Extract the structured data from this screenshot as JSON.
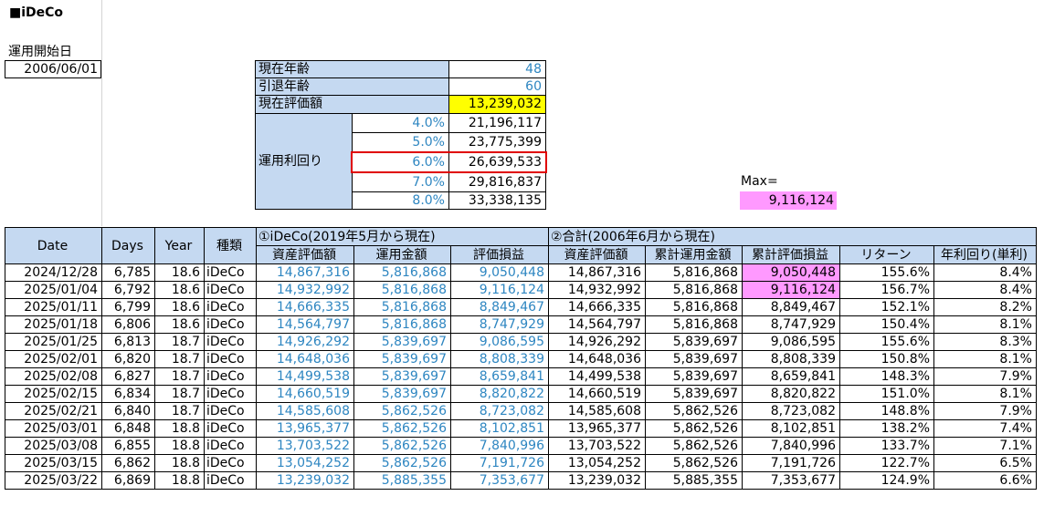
{
  "title": "■iDeCo",
  "start": {
    "label": "運用開始日",
    "value": "2006/06/01"
  },
  "summary": {
    "age_label": "現在年齢",
    "age_value": "48",
    "retire_label": "引退年齢",
    "retire_value": "60",
    "current_label": "現在評価額",
    "current_value": "13,239,032",
    "rate_label": "運用利回り",
    "rates": [
      {
        "rate": "4.0%",
        "amount": "21,196,117"
      },
      {
        "rate": "5.0%",
        "amount": "23,775,399"
      },
      {
        "rate": "6.0%",
        "amount": "26,639,533"
      },
      {
        "rate": "7.0%",
        "amount": "29,816,837"
      },
      {
        "rate": "8.0%",
        "amount": "33,338,135"
      }
    ]
  },
  "max": {
    "label": "Max=",
    "value": "9,116,124"
  },
  "table": {
    "group1": "①iDeCo(2019年5月から現在)",
    "group2": "②合計(2006年6月から現在)",
    "headers": {
      "date": "Date",
      "days": "Days",
      "year": "Year",
      "type": "種類",
      "asset1": "資産評価額",
      "invest1": "運用金額",
      "pl1": "評価損益",
      "asset2": "資産評価額",
      "invest2": "累計運用金額",
      "pl2": "累計評価損益",
      "ret": "リターン",
      "annual": "年利回り(単利)"
    },
    "rows": [
      {
        "date": "2024/12/28",
        "days": "6,785",
        "year": "18.6",
        "type": "iDeCo",
        "asset1": "14,867,316",
        "invest1": "5,816,868",
        "pl1": "9,050,448",
        "asset2": "14,867,316",
        "invest2": "5,816,868",
        "pl2": "9,050,448",
        "ret": "155.6%",
        "annual": "8.4%"
      },
      {
        "date": "2025/01/04",
        "days": "6,792",
        "year": "18.6",
        "type": "iDeCo",
        "asset1": "14,932,992",
        "invest1": "5,816,868",
        "pl1": "9,116,124",
        "asset2": "14,932,992",
        "invest2": "5,816,868",
        "pl2": "9,116,124",
        "ret": "156.7%",
        "annual": "8.4%"
      },
      {
        "date": "2025/01/11",
        "days": "6,799",
        "year": "18.6",
        "type": "iDeCo",
        "asset1": "14,666,335",
        "invest1": "5,816,868",
        "pl1": "8,849,467",
        "asset2": "14,666,335",
        "invest2": "5,816,868",
        "pl2": "8,849,467",
        "ret": "152.1%",
        "annual": "8.2%"
      },
      {
        "date": "2025/01/18",
        "days": "6,806",
        "year": "18.6",
        "type": "iDeCo",
        "asset1": "14,564,797",
        "invest1": "5,816,868",
        "pl1": "8,747,929",
        "asset2": "14,564,797",
        "invest2": "5,816,868",
        "pl2": "8,747,929",
        "ret": "150.4%",
        "annual": "8.1%"
      },
      {
        "date": "2025/01/25",
        "days": "6,813",
        "year": "18.7",
        "type": "iDeCo",
        "asset1": "14,926,292",
        "invest1": "5,839,697",
        "pl1": "9,086,595",
        "asset2": "14,926,292",
        "invest2": "5,839,697",
        "pl2": "9,086,595",
        "ret": "155.6%",
        "annual": "8.3%"
      },
      {
        "date": "2025/02/01",
        "days": "6,820",
        "year": "18.7",
        "type": "iDeCo",
        "asset1": "14,648,036",
        "invest1": "5,839,697",
        "pl1": "8,808,339",
        "asset2": "14,648,036",
        "invest2": "5,839,697",
        "pl2": "8,808,339",
        "ret": "150.8%",
        "annual": "8.1%"
      },
      {
        "date": "2025/02/08",
        "days": "6,827",
        "year": "18.7",
        "type": "iDeCo",
        "asset1": "14,499,538",
        "invest1": "5,839,697",
        "pl1": "8,659,841",
        "asset2": "14,499,538",
        "invest2": "5,839,697",
        "pl2": "8,659,841",
        "ret": "148.3%",
        "annual": "7.9%"
      },
      {
        "date": "2025/02/15",
        "days": "6,834",
        "year": "18.7",
        "type": "iDeCo",
        "asset1": "14,660,519",
        "invest1": "5,839,697",
        "pl1": "8,820,822",
        "asset2": "14,660,519",
        "invest2": "5,839,697",
        "pl2": "8,820,822",
        "ret": "151.0%",
        "annual": "8.1%"
      },
      {
        "date": "2025/02/21",
        "days": "6,840",
        "year": "18.7",
        "type": "iDeCo",
        "asset1": "14,585,608",
        "invest1": "5,862,526",
        "pl1": "8,723,082",
        "asset2": "14,585,608",
        "invest2": "5,862,526",
        "pl2": "8,723,082",
        "ret": "148.8%",
        "annual": "7.9%"
      },
      {
        "date": "2025/03/01",
        "days": "6,848",
        "year": "18.8",
        "type": "iDeCo",
        "asset1": "13,965,377",
        "invest1": "5,862,526",
        "pl1": "8,102,851",
        "asset2": "13,965,377",
        "invest2": "5,862,526",
        "pl2": "8,102,851",
        "ret": "138.2%",
        "annual": "7.4%"
      },
      {
        "date": "2025/03/08",
        "days": "6,855",
        "year": "18.8",
        "type": "iDeCo",
        "asset1": "13,703,522",
        "invest1": "5,862,526",
        "pl1": "7,840,996",
        "asset2": "13,703,522",
        "invest2": "5,862,526",
        "pl2": "7,840,996",
        "ret": "133.7%",
        "annual": "7.1%"
      },
      {
        "date": "2025/03/15",
        "days": "6,862",
        "year": "18.8",
        "type": "iDeCo",
        "asset1": "13,054,252",
        "invest1": "5,862,526",
        "pl1": "7,191,726",
        "asset2": "13,054,252",
        "invest2": "5,862,526",
        "pl2": "7,191,726",
        "ret": "122.7%",
        "annual": "6.5%"
      },
      {
        "date": "2025/03/22",
        "days": "6,869",
        "year": "18.8",
        "type": "iDeCo",
        "asset1": "13,239,032",
        "invest1": "5,885,355",
        "pl1": "7,353,677",
        "asset2": "13,239,032",
        "invest2": "5,885,355",
        "pl2": "7,353,677",
        "ret": "124.9%",
        "annual": "6.6%"
      }
    ],
    "highlighted_pl2_rows": [
      0,
      1
    ]
  },
  "colors": {
    "header_blue": "#c5d9f1",
    "yellow": "#ffff00",
    "pink": "#ff99ff",
    "salmon": "#f4b6a0",
    "blue_text": "#2e86c1",
    "red_outline": "#e00000"
  }
}
